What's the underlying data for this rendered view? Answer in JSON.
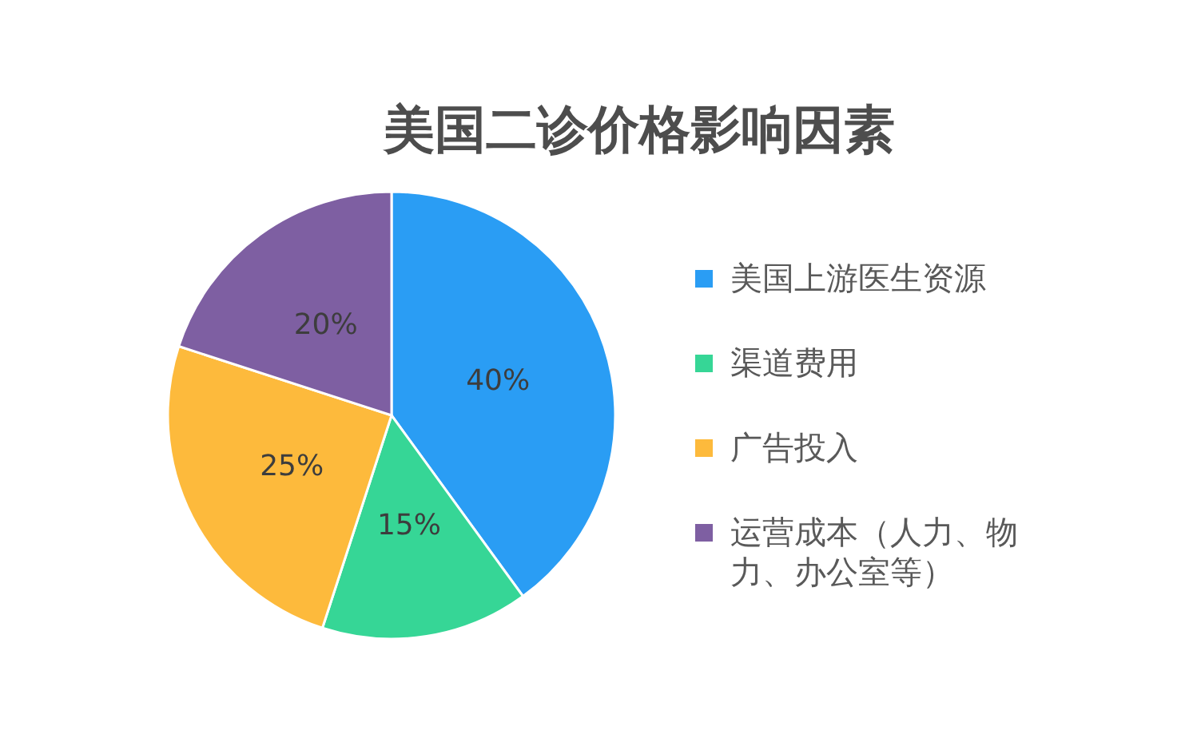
{
  "chart_data": {
    "type": "pie",
    "title": "美国二诊价格影响因素",
    "categories": [
      "美国上游医生资源",
      "渠道费用",
      "广告投入",
      "运营成本（人力、物力、办公室等）"
    ],
    "values": [
      40,
      15,
      25,
      20
    ],
    "colors": [
      "#2a9df4",
      "#36d696",
      "#fdba3c",
      "#7e5fa2"
    ],
    "value_labels": [
      "40%",
      "15%",
      "25%",
      "20%"
    ],
    "legend": "right"
  }
}
